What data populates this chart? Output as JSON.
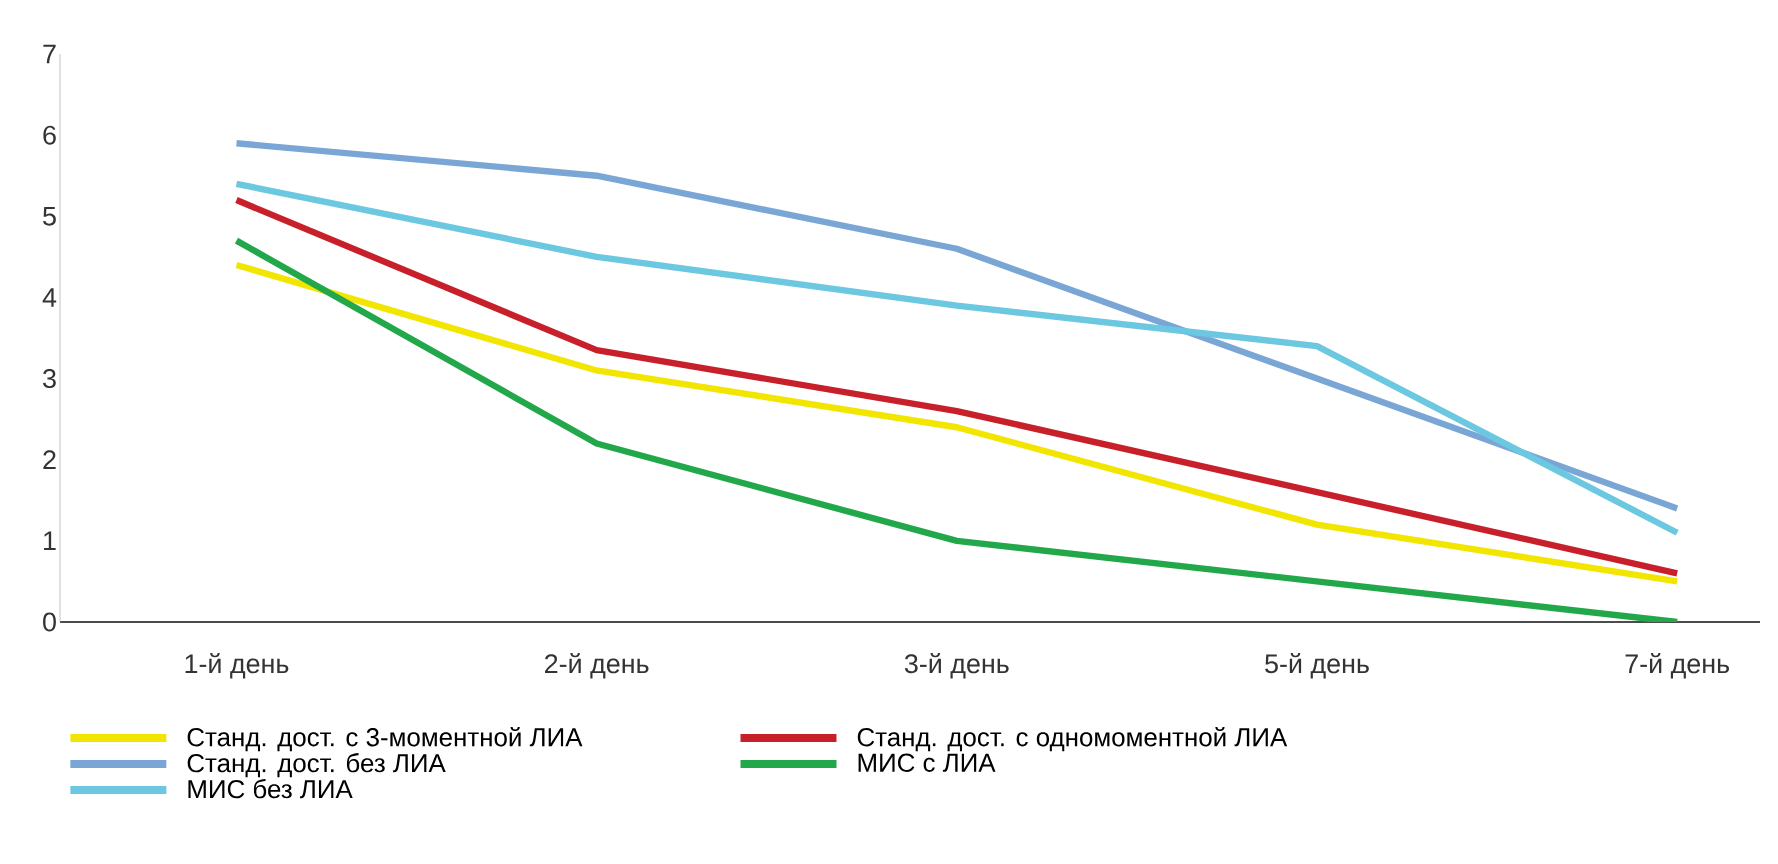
{
  "chart_data": {
    "type": "line",
    "categories": [
      "1-й день",
      "2-й день",
      "3-й день",
      "5-й день",
      "7-й день"
    ],
    "series": [
      {
        "name": "Станд. дост. с 3-моментной ЛИА",
        "color": "#f2e600",
        "values": [
          4.4,
          3.1,
          2.4,
          1.2,
          0.5
        ]
      },
      {
        "name": "Станд. дост. с одномоментной ЛИА",
        "color": "#c8202a",
        "values": [
          5.2,
          3.35,
          2.6,
          1.6,
          0.6
        ]
      },
      {
        "name": "Станд. дост. без ЛИА",
        "color": "#7aa6d6",
        "values": [
          5.9,
          5.5,
          4.6,
          3.0,
          1.4
        ]
      },
      {
        "name": "МИС с ЛИА",
        "color": "#22a84a",
        "values": [
          4.7,
          2.2,
          1.0,
          0.5,
          0
        ]
      },
      {
        "name": "МИС без ЛИА",
        "color": "#6cc8e0",
        "values": [
          5.4,
          4.5,
          3.9,
          3.4,
          1.1
        ]
      }
    ],
    "ylim": [
      0,
      7
    ],
    "yticks": [
      0,
      1,
      2,
      3,
      4,
      5,
      6,
      7
    ],
    "grid": false,
    "legend": "bottom",
    "marker": "none",
    "line_style": "solid"
  }
}
